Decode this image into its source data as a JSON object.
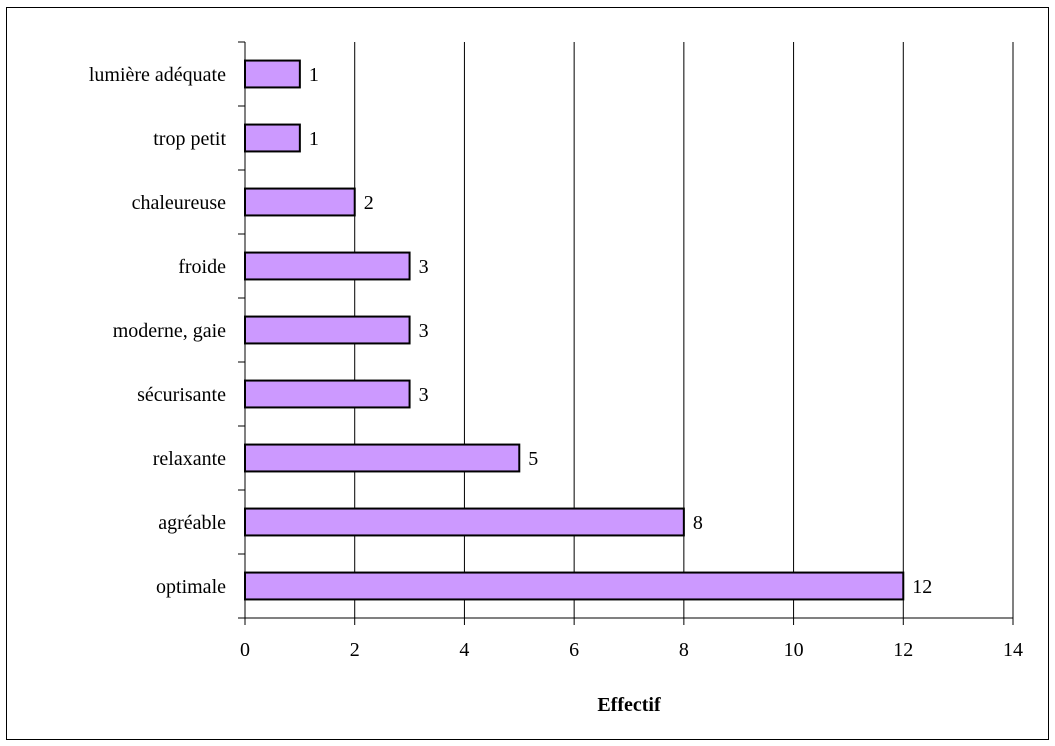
{
  "chart_data": {
    "type": "bar",
    "orientation": "horizontal",
    "title": "",
    "xlabel": "Effectif",
    "ylabel": "",
    "categories": [
      "optimale",
      "agréable",
      "relaxante",
      "sécurisante",
      "moderne, gaie",
      "froide",
      "chaleureuse",
      "trop petit",
      "lumière adéquate"
    ],
    "values": [
      12,
      8,
      5,
      3,
      3,
      3,
      2,
      1,
      1
    ],
    "xlim": [
      0,
      14
    ],
    "xticks": [
      0,
      2,
      4,
      6,
      8,
      10,
      12,
      14
    ],
    "grid": "vertical",
    "legend": "none",
    "data_labels": true,
    "colors": {
      "bar_fill": "#cc99ff",
      "bar_stroke": "#000000",
      "grid": "#000000",
      "frame": "#000000"
    }
  }
}
